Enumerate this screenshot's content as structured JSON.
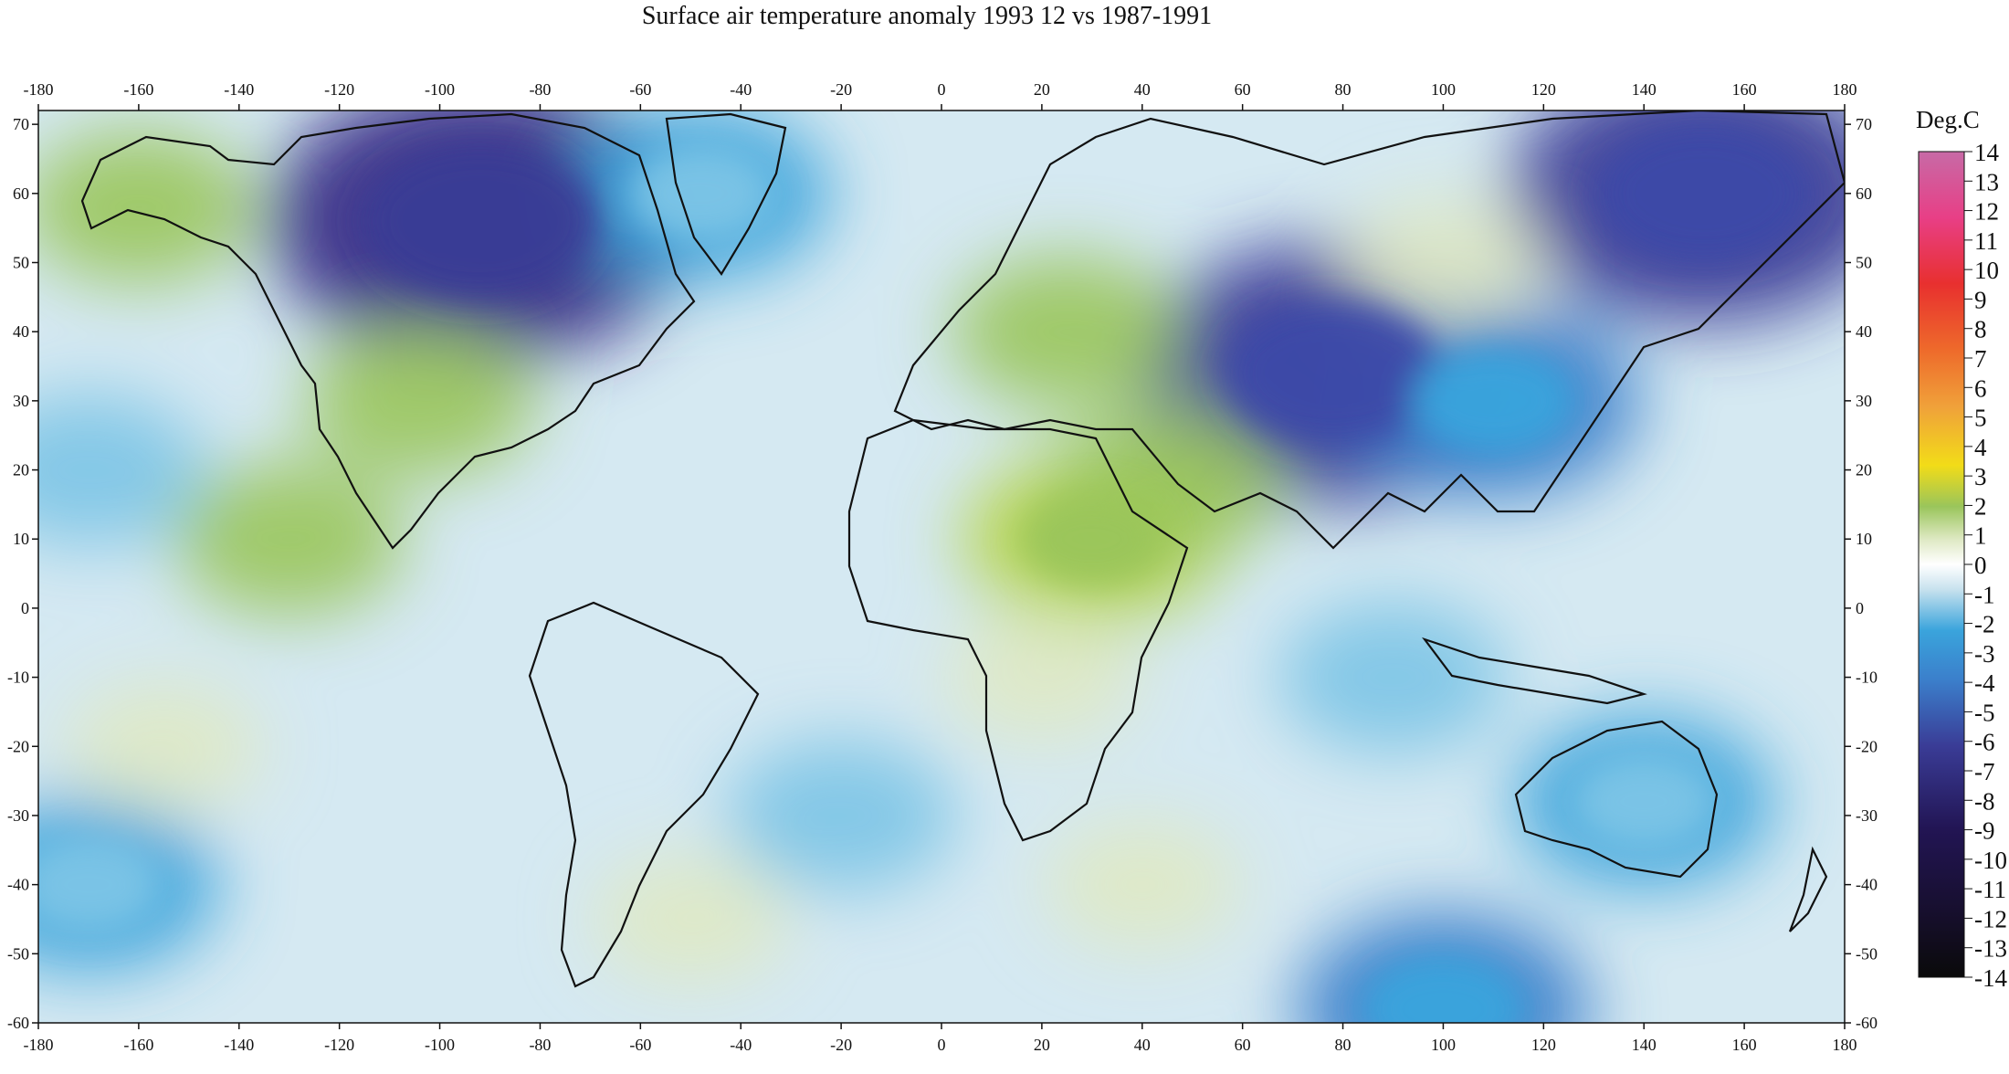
{
  "title": "Surface air temperature anomaly 1993 12 vs 1987-1991",
  "chart_data": {
    "type": "heatmap",
    "title": "Surface air temperature anomaly 1993 12 vs 1987-1991",
    "x_ticks": [
      "-180",
      "-160",
      "-140",
      "-120",
      "-100",
      "-80",
      "-60",
      "-40",
      "-20",
      "0",
      "20",
      "40",
      "60",
      "80",
      "100",
      "120",
      "140",
      "160",
      "180"
    ],
    "y_ticks": [
      "70",
      "60",
      "50",
      "40",
      "30",
      "20",
      "10",
      "0",
      "-10",
      "-20",
      "-30",
      "-40",
      "-50",
      "-60"
    ],
    "xlim": [
      -180,
      180
    ],
    "ylim": [
      -60,
      72
    ],
    "colorbar": {
      "unit": "Deg.C",
      "labels": [
        "14",
        "13",
        "12",
        "11",
        "10",
        "9",
        "8",
        "7",
        "6",
        "5",
        "4",
        "3",
        "2",
        "1",
        "0",
        "-1",
        "-2",
        "-3",
        "-4",
        "-5",
        "-6",
        "-7",
        "-8",
        "-9",
        "-10",
        "-11",
        "-12",
        "-13",
        "-14"
      ],
      "colors": {
        "14": "#c76aa6",
        "12": "#e83f86",
        "10": "#e8302f",
        "8": "#ee6a2b",
        "6": "#f0a23a",
        "4": "#f2dc18",
        "3": "#b7d548",
        "2": "#9ac55b",
        "1": "#dfe9c4",
        "0": "#ffffff",
        "-1": "#c8e2ee",
        "-2": "#7cc4e6",
        "-3": "#3aa4dc",
        "-4": "#3b7fcb",
        "-5": "#3c5fb8",
        "-6": "#3d4aa8",
        "-7": "#3a3c96",
        "-8": "#352a84",
        "-9": "#2c1d6c",
        "-10": "#221554",
        "-12": "#170f2e",
        "-14": "#0a0a0a"
      }
    },
    "regions": [
      {
        "name": "cold-canada",
        "lon": -92,
        "lat": 56,
        "value": -8
      },
      {
        "name": "cold-east-siberia",
        "lon": 152,
        "lat": 60,
        "value": -7
      },
      {
        "name": "cold-central-asia",
        "lon": 78,
        "lat": 34,
        "value": -7
      },
      {
        "name": "cold-china",
        "lon": 110,
        "lat": 30,
        "value": -4
      },
      {
        "name": "cold-north-atlantic",
        "lon": -48,
        "lat": 60,
        "value": -3
      },
      {
        "name": "cold-australia",
        "lon": 140,
        "lat": -28,
        "value": -3
      },
      {
        "name": "cold-south-pacific",
        "lon": -170,
        "lat": -40,
        "value": -3
      },
      {
        "name": "cold-indian-ocean",
        "lon": 90,
        "lat": -10,
        "value": -2
      },
      {
        "name": "cold-south-atlantic",
        "lon": -20,
        "lat": -30,
        "value": -2
      },
      {
        "name": "cold-north-pacific",
        "lon": -170,
        "lat": 20,
        "value": -2
      },
      {
        "name": "cold-far-south",
        "lon": 100,
        "lat": -58,
        "value": -4
      },
      {
        "name": "warm-alaska",
        "lon": -160,
        "lat": 58,
        "value": 2
      },
      {
        "name": "warm-usa",
        "lon": -104,
        "lat": 30,
        "value": 2
      },
      {
        "name": "warm-europe",
        "lon": 25,
        "lat": 40,
        "value": 2
      },
      {
        "name": "warm-egypt",
        "lon": 30,
        "lat": 10,
        "value": 3
      },
      {
        "name": "warm-arabia",
        "lon": 45,
        "lat": 18,
        "value": 2
      },
      {
        "name": "warm-siberia",
        "lon": 100,
        "lat": 50,
        "value": 1
      },
      {
        "name": "warm-pacific",
        "lon": -130,
        "lat": 10,
        "value": 2
      },
      {
        "name": "warm-south-america",
        "lon": -50,
        "lat": -45,
        "value": 1
      },
      {
        "name": "warm-south-pacific",
        "lon": -155,
        "lat": -20,
        "value": 1
      },
      {
        "name": "warm-indian-south",
        "lon": 40,
        "lat": -40,
        "value": 1
      },
      {
        "name": "warm-africa",
        "lon": 20,
        "lat": -10,
        "value": 1
      }
    ]
  }
}
